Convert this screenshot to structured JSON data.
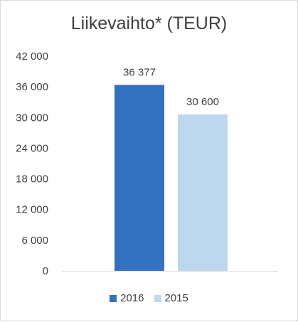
{
  "chart_data": {
    "type": "bar",
    "title": "Liikevaihto* (TEUR)",
    "categories": [
      "2016",
      "2015"
    ],
    "values": [
      36377,
      30600
    ],
    "value_labels": [
      "36 377",
      "30 600"
    ],
    "ylim": [
      0,
      42000
    ],
    "yticks": [
      0,
      6000,
      12000,
      18000,
      24000,
      30000,
      36000,
      42000
    ],
    "ytick_labels": [
      "0",
      "6 000",
      "12 000",
      "18 000",
      "24 000",
      "30 000",
      "36 000",
      "42 000"
    ],
    "colors": [
      "#3571c1",
      "#bdd7ee"
    ],
    "legend": [
      "2016",
      "2015"
    ],
    "legend_position": "bottom",
    "grid": false,
    "xlabel": "",
    "ylabel": ""
  }
}
